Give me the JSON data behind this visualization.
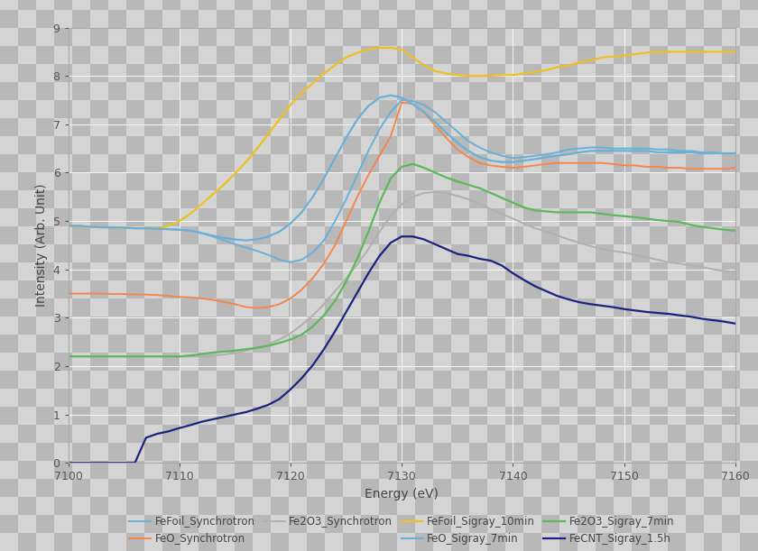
{
  "x_min": 7100,
  "x_max": 7160,
  "y_min": 0,
  "y_max": 9,
  "xlabel": "Energy (eV)",
  "ylabel": "Intensity (Arb. Unit)",
  "checker_light": "#d4d4d4",
  "checker_dark": "#b8b8b8",
  "grid_color": "#ffffff",
  "series": [
    {
      "label": "FeFoil_Synchrotron",
      "color": "#6ab0d8",
      "linewidth": 1.4,
      "x": [
        7100,
        7101,
        7102,
        7103,
        7104,
        7105,
        7106,
        7107,
        7108,
        7109,
        7110,
        7111,
        7112,
        7113,
        7114,
        7115,
        7116,
        7117,
        7118,
        7119,
        7120,
        7121,
        7122,
        7123,
        7124,
        7125,
        7126,
        7127,
        7128,
        7129,
        7130,
        7131,
        7132,
        7133,
        7134,
        7135,
        7136,
        7137,
        7138,
        7139,
        7140,
        7141,
        7142,
        7143,
        7144,
        7145,
        7146,
        7147,
        7148,
        7149,
        7150,
        7151,
        7152,
        7153,
        7154,
        7155,
        7156,
        7157,
        7158,
        7159,
        7160
      ],
      "y": [
        4.9,
        4.9,
        4.88,
        4.87,
        4.87,
        4.86,
        4.85,
        4.85,
        4.84,
        4.83,
        4.82,
        4.8,
        4.75,
        4.68,
        4.6,
        4.52,
        4.45,
        4.38,
        4.3,
        4.2,
        4.15,
        4.2,
        4.35,
        4.6,
        5.0,
        5.45,
        5.95,
        6.45,
        6.9,
        7.25,
        7.5,
        7.48,
        7.4,
        7.25,
        7.05,
        6.85,
        6.65,
        6.52,
        6.42,
        6.35,
        6.3,
        6.32,
        6.35,
        6.38,
        6.42,
        6.48,
        6.5,
        6.52,
        6.52,
        6.5,
        6.5,
        6.5,
        6.5,
        6.48,
        6.48,
        6.45,
        6.45,
        6.42,
        6.42,
        6.4,
        6.4
      ]
    },
    {
      "label": "FeO_Synchrotron",
      "color": "#f4874b",
      "linewidth": 1.4,
      "x": [
        7100,
        7101,
        7102,
        7103,
        7104,
        7105,
        7106,
        7107,
        7108,
        7109,
        7110,
        7111,
        7112,
        7113,
        7114,
        7115,
        7116,
        7117,
        7118,
        7119,
        7120,
        7121,
        7122,
        7123,
        7124,
        7125,
        7126,
        7127,
        7128,
        7129,
        7130,
        7131,
        7132,
        7133,
        7134,
        7135,
        7136,
        7137,
        7138,
        7139,
        7140,
        7141,
        7142,
        7143,
        7144,
        7145,
        7146,
        7147,
        7148,
        7149,
        7150,
        7151,
        7152,
        7153,
        7154,
        7155,
        7156,
        7157,
        7158,
        7159,
        7160
      ],
      "y": [
        3.5,
        3.5,
        3.5,
        3.5,
        3.49,
        3.49,
        3.48,
        3.48,
        3.47,
        3.45,
        3.43,
        3.42,
        3.4,
        3.37,
        3.33,
        3.28,
        3.22,
        3.2,
        3.22,
        3.28,
        3.4,
        3.58,
        3.82,
        4.12,
        4.5,
        5.0,
        5.5,
        5.95,
        6.35,
        6.75,
        7.45,
        7.42,
        7.25,
        6.98,
        6.72,
        6.48,
        6.32,
        6.2,
        6.15,
        6.12,
        6.1,
        6.12,
        6.15,
        6.18,
        6.2,
        6.2,
        6.2,
        6.2,
        6.2,
        6.18,
        6.15,
        6.15,
        6.12,
        6.12,
        6.1,
        6.1,
        6.08,
        6.08,
        6.08,
        6.08,
        6.1
      ]
    },
    {
      "label": "Fe2O3_Synchrotron",
      "color": "#b0b0b0",
      "linewidth": 1.4,
      "x": [
        7100,
        7101,
        7102,
        7103,
        7104,
        7105,
        7106,
        7107,
        7108,
        7109,
        7110,
        7111,
        7112,
        7113,
        7114,
        7115,
        7116,
        7117,
        7118,
        7119,
        7120,
        7121,
        7122,
        7123,
        7124,
        7125,
        7126,
        7127,
        7128,
        7129,
        7130,
        7131,
        7132,
        7133,
        7134,
        7135,
        7136,
        7137,
        7138,
        7139,
        7140,
        7141,
        7142,
        7143,
        7144,
        7145,
        7146,
        7147,
        7148,
        7149,
        7150,
        7151,
        7152,
        7153,
        7154,
        7155,
        7156,
        7157,
        7158,
        7159,
        7160
      ],
      "y": [
        2.2,
        2.2,
        2.2,
        2.2,
        2.2,
        2.2,
        2.2,
        2.2,
        2.2,
        2.2,
        2.2,
        2.2,
        2.2,
        2.22,
        2.24,
        2.27,
        2.32,
        2.38,
        2.45,
        2.55,
        2.68,
        2.85,
        3.05,
        3.28,
        3.55,
        3.82,
        4.1,
        4.42,
        4.78,
        5.1,
        5.35,
        5.5,
        5.58,
        5.6,
        5.58,
        5.52,
        5.45,
        5.35,
        5.25,
        5.15,
        5.05,
        4.95,
        4.85,
        4.78,
        4.7,
        4.62,
        4.55,
        4.48,
        4.42,
        4.38,
        4.35,
        4.3,
        4.25,
        4.2,
        4.15,
        4.12,
        4.08,
        4.05,
        4.0,
        3.97,
        3.95
      ]
    },
    {
      "label": "FeFoil_Sigray_10min",
      "color": "#f0c020",
      "linewidth": 1.6,
      "x": [
        7100,
        7101,
        7102,
        7103,
        7104,
        7105,
        7106,
        7107,
        7108,
        7109,
        7110,
        7111,
        7112,
        7113,
        7114,
        7115,
        7116,
        7117,
        7118,
        7119,
        7120,
        7121,
        7122,
        7123,
        7124,
        7125,
        7126,
        7127,
        7128,
        7129,
        7130,
        7131,
        7132,
        7133,
        7134,
        7135,
        7136,
        7137,
        7138,
        7139,
        7140,
        7141,
        7142,
        7143,
        7144,
        7145,
        7146,
        7147,
        7148,
        7149,
        7150,
        7151,
        7152,
        7153,
        7154,
        7155,
        7156,
        7157,
        7158,
        7159,
        7160
      ],
      "y": [
        4.9,
        4.9,
        4.88,
        4.87,
        4.87,
        4.86,
        4.85,
        4.85,
        4.84,
        4.9,
        5.0,
        5.15,
        5.35,
        5.55,
        5.75,
        5.98,
        6.22,
        6.5,
        6.8,
        7.1,
        7.4,
        7.65,
        7.85,
        8.05,
        8.22,
        8.38,
        8.48,
        8.55,
        8.58,
        8.58,
        8.55,
        8.38,
        8.22,
        8.1,
        8.05,
        8.02,
        8.0,
        8.0,
        8.0,
        8.02,
        8.02,
        8.05,
        8.08,
        8.12,
        8.18,
        8.22,
        8.28,
        8.32,
        8.38,
        8.4,
        8.42,
        8.45,
        8.48,
        8.5,
        8.5,
        8.5,
        8.5,
        8.5,
        8.5,
        8.5,
        8.5
      ]
    },
    {
      "label": "FeO_Sigray_7min",
      "color": "#6ab0d8",
      "linewidth": 1.6,
      "x": [
        7100,
        7101,
        7102,
        7103,
        7104,
        7105,
        7106,
        7107,
        7108,
        7109,
        7110,
        7111,
        7112,
        7113,
        7114,
        7115,
        7116,
        7117,
        7118,
        7119,
        7120,
        7121,
        7122,
        7123,
        7124,
        7125,
        7126,
        7127,
        7128,
        7129,
        7130,
        7131,
        7132,
        7133,
        7134,
        7135,
        7136,
        7137,
        7138,
        7139,
        7140,
        7141,
        7142,
        7143,
        7144,
        7145,
        7146,
        7147,
        7148,
        7149,
        7150,
        7151,
        7152,
        7153,
        7154,
        7155,
        7156,
        7157,
        7158,
        7159,
        7160
      ],
      "y": [
        4.9,
        4.9,
        4.88,
        4.87,
        4.87,
        4.86,
        4.85,
        4.85,
        4.84,
        4.83,
        4.82,
        4.8,
        4.75,
        4.7,
        4.65,
        4.62,
        4.6,
        4.62,
        4.68,
        4.78,
        4.95,
        5.18,
        5.5,
        5.88,
        6.3,
        6.72,
        7.1,
        7.38,
        7.55,
        7.6,
        7.55,
        7.42,
        7.25,
        7.05,
        6.82,
        6.62,
        6.45,
        6.32,
        6.25,
        6.22,
        6.22,
        6.25,
        6.28,
        6.32,
        6.35,
        6.38,
        6.42,
        6.45,
        6.45,
        6.45,
        6.45,
        6.45,
        6.45,
        6.42,
        6.42,
        6.42,
        6.42,
        6.4,
        6.4,
        6.4,
        6.4
      ]
    },
    {
      "label": "Fe2O3_Sigray_7min",
      "color": "#5cb85c",
      "linewidth": 1.6,
      "x": [
        7100,
        7101,
        7102,
        7103,
        7104,
        7105,
        7106,
        7107,
        7108,
        7109,
        7110,
        7111,
        7112,
        7113,
        7114,
        7115,
        7116,
        7117,
        7118,
        7119,
        7120,
        7121,
        7122,
        7123,
        7124,
        7125,
        7126,
        7127,
        7128,
        7129,
        7130,
        7131,
        7132,
        7133,
        7134,
        7135,
        7136,
        7137,
        7138,
        7139,
        7140,
        7141,
        7142,
        7143,
        7144,
        7145,
        7146,
        7147,
        7148,
        7149,
        7150,
        7151,
        7152,
        7153,
        7154,
        7155,
        7156,
        7157,
        7158,
        7159,
        7160
      ],
      "y": [
        2.2,
        2.2,
        2.2,
        2.2,
        2.2,
        2.2,
        2.2,
        2.2,
        2.2,
        2.2,
        2.2,
        2.22,
        2.25,
        2.28,
        2.3,
        2.32,
        2.35,
        2.38,
        2.42,
        2.48,
        2.55,
        2.65,
        2.82,
        3.05,
        3.35,
        3.75,
        4.22,
        4.78,
        5.38,
        5.88,
        6.12,
        6.18,
        6.1,
        6.0,
        5.9,
        5.82,
        5.75,
        5.68,
        5.58,
        5.48,
        5.38,
        5.28,
        5.22,
        5.2,
        5.18,
        5.18,
        5.18,
        5.18,
        5.15,
        5.12,
        5.1,
        5.08,
        5.05,
        5.02,
        5.0,
        4.98,
        4.92,
        4.88,
        4.85,
        4.82,
        4.8
      ]
    },
    {
      "label": "FeCNT_Sigray_1.5h",
      "color": "#1a237e",
      "linewidth": 1.6,
      "x": [
        7100,
        7101,
        7102,
        7103,
        7104,
        7105,
        7106,
        7107,
        7108,
        7109,
        7110,
        7111,
        7112,
        7113,
        7114,
        7115,
        7116,
        7117,
        7118,
        7119,
        7120,
        7121,
        7122,
        7123,
        7124,
        7125,
        7126,
        7127,
        7128,
        7129,
        7130,
        7131,
        7132,
        7133,
        7134,
        7135,
        7136,
        7137,
        7138,
        7139,
        7140,
        7141,
        7142,
        7143,
        7144,
        7145,
        7146,
        7147,
        7148,
        7149,
        7150,
        7151,
        7152,
        7153,
        7154,
        7155,
        7156,
        7157,
        7158,
        7159,
        7160
      ],
      "y": [
        0.0,
        0.0,
        0.0,
        0.0,
        0.0,
        0.0,
        0.0,
        0.52,
        0.6,
        0.65,
        0.72,
        0.78,
        0.85,
        0.9,
        0.95,
        1.0,
        1.05,
        1.12,
        1.2,
        1.32,
        1.52,
        1.75,
        2.02,
        2.35,
        2.72,
        3.12,
        3.52,
        3.92,
        4.28,
        4.55,
        4.68,
        4.68,
        4.62,
        4.52,
        4.42,
        4.32,
        4.28,
        4.22,
        4.18,
        4.08,
        3.92,
        3.78,
        3.65,
        3.55,
        3.45,
        3.38,
        3.32,
        3.28,
        3.25,
        3.22,
        3.18,
        3.15,
        3.12,
        3.1,
        3.08,
        3.05,
        3.02,
        2.98,
        2.95,
        2.92,
        2.88
      ]
    }
  ],
  "legend_order": [
    0,
    1,
    2,
    3,
    4,
    5,
    6
  ],
  "legend_ncol": 4,
  "legend_row1": [
    "FeFoil_Synchrotron",
    "FeO_Synchrotron",
    "Fe2O3_Synchrotron"
  ],
  "legend_row2": [
    "FeFoil_Sigray_10min",
    "FeO_Sigray_7min",
    "Fe2O3_Sigray_7min",
    "FeCNT_Sigray_1.5h"
  ]
}
